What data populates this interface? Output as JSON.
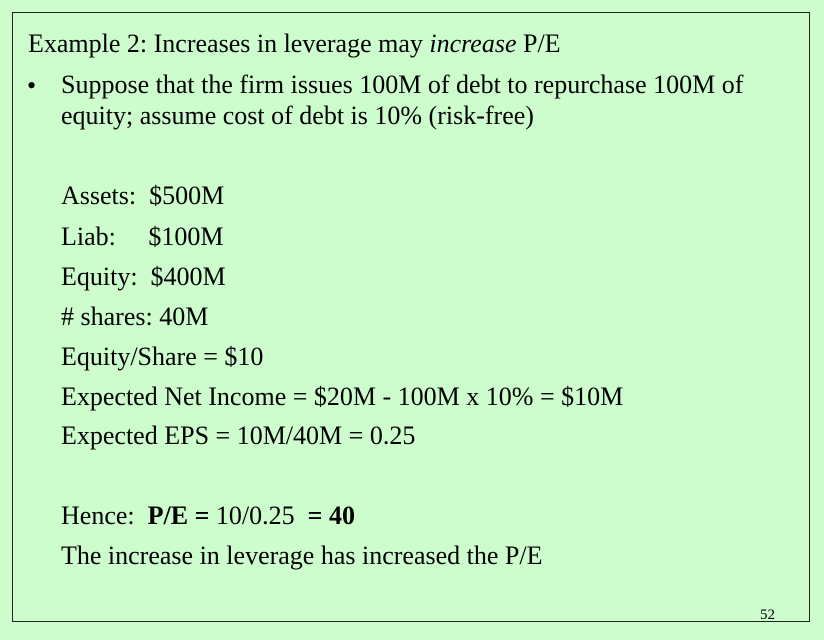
{
  "slide": {
    "title_prefix": "Example 2: Increases in leverage may ",
    "title_italic": "increase",
    "title_suffix": " P/E",
    "bullet_marker": "•",
    "bullet_text": "Suppose that the firm issues 100M of debt to repurchase 100M of equity; assume cost of debt is 10% (risk-free)",
    "lines": [
      "Assets:  $500M",
      "Liab:     $100M",
      "Equity:  $400M",
      "# shares: 40M",
      "Equity/Share = $10",
      "Expected Net Income = $20M - 100M x 10% = $10M",
      "Expected EPS = 10M/40M = 0.25"
    ],
    "hence": {
      "label": "Hence:  ",
      "pe_label": "P/E =",
      "calc": " 10/0.25  ",
      "result": "= 40"
    },
    "conclusion": "The increase in leverage has increased the P/E",
    "page_number": "52"
  }
}
